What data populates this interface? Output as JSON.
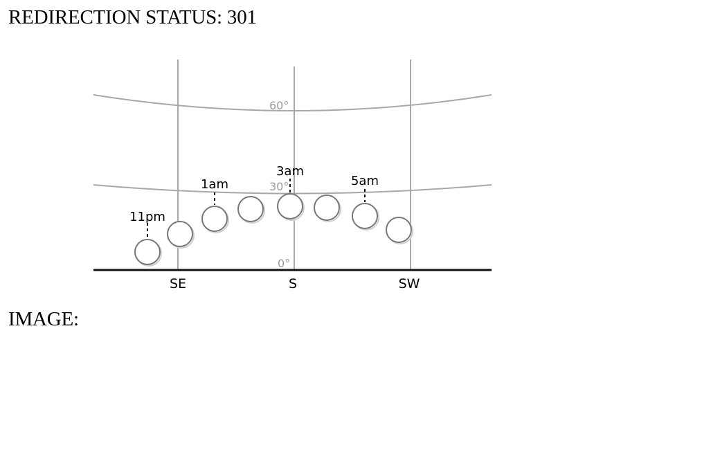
{
  "status": {
    "label": "REDIRECTION STATUS:",
    "code": "301"
  },
  "image_caption": "IMAGE:",
  "diagram": {
    "altitude_labels": [
      "60°",
      "30°",
      "0°"
    ],
    "direction_labels": [
      "SE",
      "S",
      "SW"
    ],
    "time_labels": [
      "11pm",
      "1am",
      "3am",
      "5am"
    ],
    "colors": {
      "grid": "#a8a8a8",
      "horizon": "#111111",
      "muted_label": "#9a9a9a",
      "text": "#000000",
      "moon_stroke": "#777777"
    }
  }
}
